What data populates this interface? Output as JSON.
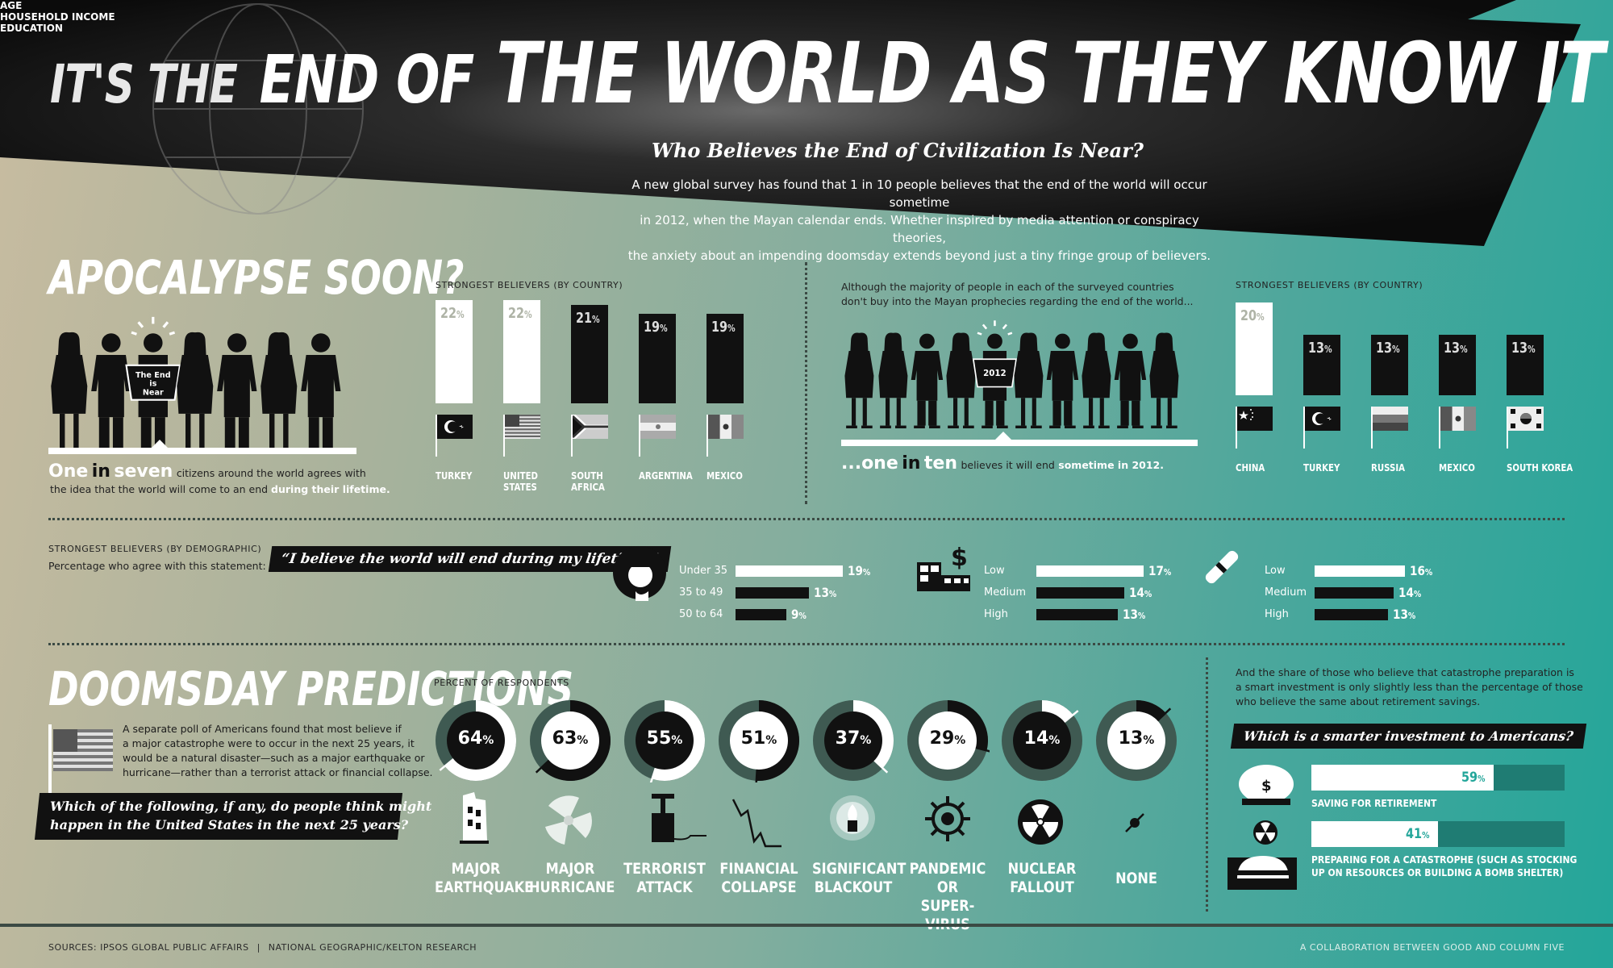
{
  "colors": {
    "dark": "#111111",
    "white": "#ffffff",
    "teal": "#23a69a",
    "gray_ring": "#3f5a52"
  },
  "header": {
    "title_part1": "IT'S THE",
    "title_part2": "END OF",
    "title_part3": "THE WORLD AS THEY KNOW IT",
    "subtitle": "Who Believes the End of Civilization Is Near?",
    "intro_lines": [
      "A new global survey has found that 1 in 10 people believes that the end of the world will occur sometime",
      "in 2012, when the Mayan calendar ends. Whether inspired by media attention or conspiracy theories,",
      "the anxiety about an impending doomsday extends beyond just a tiny fringe group of believers."
    ]
  },
  "apocalypse": {
    "title": "APOCALYPSE SOON?",
    "sign_text": [
      "The End",
      "is",
      "Near"
    ],
    "stat_big": "One",
    "stat_in": "in",
    "stat_seven": "seven",
    "stat_rest": "citizens around the world agrees with",
    "stat_line2": "the idea that the world will come to an end",
    "stat_emph": "during their lifetime."
  },
  "chart_data": [
    {
      "type": "bar",
      "title": "STRONGEST BELIEVERS (BY COUNTRY)",
      "categories": [
        "TURKEY",
        "UNITED STATES",
        "SOUTH AFRICA",
        "ARGENTINA",
        "MEXICO"
      ],
      "category_lines": [
        [
          "TURKEY"
        ],
        [
          "UNITED",
          "STATES"
        ],
        [
          "SOUTH",
          "AFRICA"
        ],
        [
          "ARGENTINA"
        ],
        [
          "MEXICO"
        ]
      ],
      "values": [
        22,
        22,
        21,
        19,
        19
      ],
      "unit": "%",
      "highlight": [
        true,
        true,
        false,
        false,
        false
      ]
    },
    {
      "type": "bar",
      "title": "STRONGEST BELIEVERS (BY COUNTRY)",
      "categories": [
        "CHINA",
        "TURKEY",
        "RUSSIA",
        "MEXICO",
        "SOUTH KOREA"
      ],
      "category_lines": [
        [
          "CHINA"
        ],
        [
          "TURKEY"
        ],
        [
          "RUSSIA"
        ],
        [
          "MEXICO"
        ],
        [
          "SOUTH KOREA"
        ]
      ],
      "values": [
        20,
        13,
        13,
        13,
        13
      ],
      "unit": "%",
      "highlight": [
        true,
        false,
        false,
        false,
        false
      ]
    },
    {
      "type": "bar",
      "title": "AGE",
      "categories": [
        "Under 35",
        "35 to 49",
        "50 to 64"
      ],
      "values": [
        19,
        13,
        9
      ],
      "unit": "%"
    },
    {
      "type": "bar",
      "title": "HOUSEHOLD INCOME",
      "categories": [
        "Low",
        "Medium",
        "High"
      ],
      "values": [
        17,
        14,
        13
      ],
      "unit": "%"
    },
    {
      "type": "bar",
      "title": "EDUCATION",
      "categories": [
        "Low",
        "Medium",
        "High"
      ],
      "values": [
        16,
        14,
        13
      ],
      "unit": "%"
    },
    {
      "type": "pie",
      "title": "PERCENT OF RESPONDENTS",
      "categories": [
        "MAJOR EARTHQUAKE",
        "MAJOR HURRICANE",
        "TERRORIST ATTACK",
        "FINANCIAL COLLAPSE",
        "SIGNIFICANT BLACKOUT",
        "PANDEMIC OR SUPER-VIRUS",
        "NUCLEAR FALLOUT",
        "NONE"
      ],
      "category_lines": [
        [
          "MAJOR",
          "EARTHQUAKE"
        ],
        [
          "MAJOR",
          "HURRICANE"
        ],
        [
          "TERRORIST",
          "ATTACK"
        ],
        [
          "FINANCIAL",
          "COLLAPSE"
        ],
        [
          "SIGNIFICANT",
          "BLACKOUT"
        ],
        [
          "PANDEMIC OR",
          "SUPER-VIRUS"
        ],
        [
          "NUCLEAR",
          "FALLOUT"
        ],
        [
          "NONE"
        ]
      ],
      "values": [
        64,
        63,
        55,
        51,
        37,
        29,
        14,
        13
      ],
      "unit": "%",
      "inner_dark": [
        true,
        false,
        true,
        false,
        true,
        false,
        true,
        false
      ]
    },
    {
      "type": "bar",
      "title": "Which is a smarter investment to Americans?",
      "categories": [
        "SAVING FOR RETIREMENT",
        "PREPARING FOR A CATASTROPHE (SUCH AS STOCKING UP ON RESOURCES OR BUILDING A BOMB SHELTER)"
      ],
      "category_lines": [
        [
          "SAVING FOR RETIREMENT"
        ],
        [
          "PREPARING FOR A CATASTROPHE (SUCH AS STOCKING",
          "UP ON RESOURCES OR BUILDING A BOMB SHELTER)"
        ]
      ],
      "values": [
        59,
        41
      ],
      "unit": "%"
    }
  ],
  "right_top": {
    "intro": [
      "Although the majority of people in each of the surveyed countries",
      "don't buy into the Mayan prophecies regarding the end of the world..."
    ],
    "sign_text": "2012",
    "stat_dots": "...one",
    "stat_in": "in",
    "stat_ten": "ten",
    "stat_rest": "believes it will end",
    "stat_emph": "sometime in 2012."
  },
  "demographic": {
    "title": "STRONGEST BELIEVERS (BY DEMOGRAPHIC)",
    "subtitle": "Percentage who agree with this statement:",
    "quote": "“I believe the world will end during my lifetime.”"
  },
  "doomsday": {
    "title": "DOOMSDAY PREDICTIONS",
    "text": [
      "A separate poll of Americans found that most believe if",
      "a major catastrophe were to occur in the next 25 years, it",
      "would be a natural disaster—such as a major earthquake or",
      "hurricane—rather than a terrorist attack or financial collapse."
    ],
    "question": [
      "Which of the following, if any, do people think might",
      "happen in the United States in the next 25 years?"
    ]
  },
  "investment": {
    "intro": [
      "And the share of those who believe that catastrophe preparation is",
      "a smart investment is only slightly less than the percentage of those",
      "who believe the same about retirement savings."
    ]
  },
  "footer": {
    "sources": "SOURCES:  IPSOS GLOBAL PUBLIC AFFAIRS",
    "sources2": "NATIONAL GEOGRAPHIC/KELTON RESEARCH",
    "credit": "A COLLABORATION BETWEEN GOOD AND COLUMN FIVE"
  }
}
